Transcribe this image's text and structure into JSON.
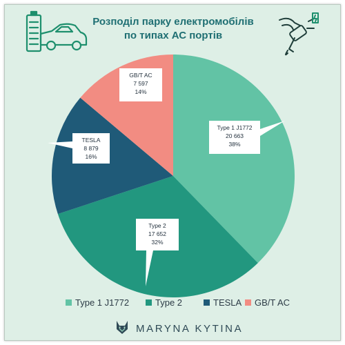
{
  "title": {
    "line1": "Розподіл парку електромобілів",
    "line2": "по типах АС портів"
  },
  "brand": {
    "name": "MARYNA KYTINA",
    "logo_icon": "fox-head-icon"
  },
  "icons": {
    "left": "electric-car-battery-icon",
    "right": "ev-charging-plug-icon"
  },
  "colors": {
    "background": "#deefe6",
    "title": "#1f6f73",
    "Type 1 J1772": "#62c3a5",
    "Type 2": "#22977f",
    "TESLA": "#1f5a78",
    "GB/T AC": "#f28c82"
  },
  "chart_data": {
    "type": "pie",
    "title": "Розподіл парку електромобілів по типах АС портів",
    "legend_position": "bottom",
    "slices": [
      {
        "label": "Type 1 J1772",
        "value_text": "20 663",
        "value": 20663,
        "percent_text": "38%",
        "color": "#62c3a5"
      },
      {
        "label": "Type 2",
        "value_text": "17 652",
        "value": 17652,
        "percent_text": "32%",
        "color": "#22977f"
      },
      {
        "label": "TESLA",
        "value_text": "8 879",
        "value": 8879,
        "percent_text": "16%",
        "color": "#1f5a78"
      },
      {
        "label": "GB/T AC",
        "value_text": "7 597",
        "value": 7597,
        "percent_text": "14%",
        "color": "#f28c82"
      }
    ]
  }
}
